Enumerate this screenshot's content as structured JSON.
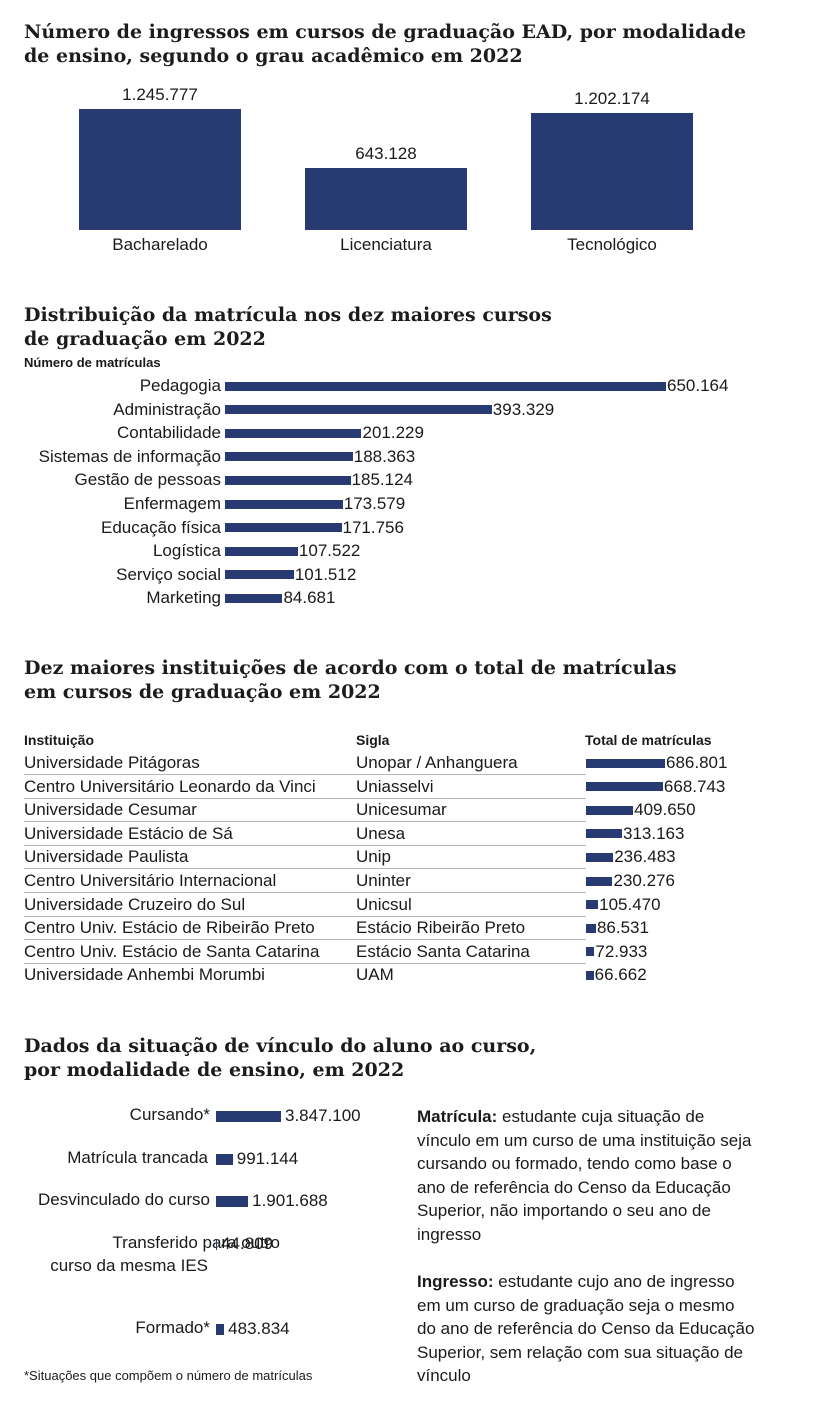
{
  "chart1": {
    "title_line1": "Número de ingressos em cursos de graduação EAD, por modalidade",
    "title_line2": "de ensino, segundo o grau acadêmico em 2022",
    "chart_data": {
      "type": "bar",
      "categories": [
        "Bacharelado",
        "Licenciatura",
        "Tecnológico"
      ],
      "values": [
        1245777,
        643128,
        1202174
      ],
      "value_labels": [
        "1.245.777",
        "643.128",
        "1.202.174"
      ]
    }
  },
  "chart2": {
    "title_line1": "Distribuição da matrícula nos dez maiores cursos",
    "title_line2": "de graduação em 2022",
    "axis_caption": "Número de matrículas",
    "chart_data": {
      "type": "bar",
      "orientation": "horizontal",
      "categories": [
        "Pedagogia",
        "Administração",
        "Contabilidade",
        "Sistemas de informação",
        "Gestão de pessoas",
        "Enfermagem",
        "Educação física",
        "Logística",
        "Serviço social",
        "Marketing"
      ],
      "values": [
        650164,
        393329,
        201229,
        188363,
        185124,
        173579,
        171756,
        107522,
        101512,
        84681
      ],
      "value_labels": [
        "650.164",
        "393.329",
        "201.229",
        "188.363",
        "185.124",
        "173.579",
        "171.756",
        "107.522",
        "101.512",
        "84.681"
      ]
    }
  },
  "table": {
    "title_line1": "Dez maiores instituições de acordo com o total de matrículas",
    "title_line2": "em cursos de graduação em 2022",
    "headers": {
      "institution": "Instituição",
      "acronym": "Sigla",
      "total": "Total de matrículas"
    },
    "rows": [
      {
        "institution": "Universidade Pitágoras",
        "acronym": "Unopar / Anhanguera",
        "total": 686801,
        "label": "686.801"
      },
      {
        "institution": "Centro Universitário Leonardo da Vinci",
        "acronym": "Uniasselvi",
        "total": 668743,
        "label": "668.743"
      },
      {
        "institution": "Universidade Cesumar",
        "acronym": "Unicesumar",
        "total": 409650,
        "label": "409.650"
      },
      {
        "institution": "Universidade Estácio de Sá",
        "acronym": "Unesa",
        "total": 313163,
        "label": "313.163"
      },
      {
        "institution": "Universidade Paulista",
        "acronym": "Unip",
        "total": 236483,
        "label": "236.483"
      },
      {
        "institution": "Centro Universitário Internacional",
        "acronym": "Uninter",
        "total": 230276,
        "label": "230.276"
      },
      {
        "institution": "Universidade Cruzeiro do Sul",
        "acronym": "Unicsul",
        "total": 105470,
        "label": "105.470"
      },
      {
        "institution": "Centro Univ. Estácio de Ribeirão Preto",
        "acronym": "Estácio Ribeirão Preto",
        "total": 86531,
        "label": "86.531"
      },
      {
        "institution": "Centro Univ. Estácio de Santa Catarina",
        "acronym": "Estácio Santa Catarina",
        "total": 72933,
        "label": "72.933"
      },
      {
        "institution": "Universidade Anhembi Morumbi",
        "acronym": "UAM",
        "total": 66662,
        "label": "66.662"
      }
    ]
  },
  "chart4": {
    "title_line1": "Dados da situação de vínculo do aluno ao curso,",
    "title_line2": "por modalidade de ensino, em 2022",
    "chart_data": {
      "type": "bar",
      "orientation": "horizontal",
      "categories": [
        "Cursando*",
        "Matrícula trancada",
        "Desvinculado do curso",
        "Transferido para outro curso da mesma IES",
        "Formado*"
      ],
      "values": [
        3847100,
        991144,
        1901688,
        44809,
        483834
      ],
      "value_labels": [
        "3.847.100",
        "991.144",
        "1.901.688",
        "44.809",
        "483.834"
      ]
    },
    "category_lines": {
      "cursando": "Cursando*",
      "trancada": "Matrícula trancada",
      "desvinculado": "Desvinculado do curso",
      "transferido_1": "Transferido para outro",
      "transferido_2": "curso da mesma IES",
      "formado": "Formado*"
    },
    "footnote": "*Situações que compõem o número de matrículas"
  },
  "definitions": [
    {
      "term": "Matrícula:",
      "text": " estudante cuja situação de vínculo em um curso de uma instituição seja cursando ou formado, tendo como base o ano de referência do Censo da Educação Superior, não importando o seu ano de ingresso"
    },
    {
      "term": "Ingresso:",
      "text": " estudante cujo ano de ingresso em um curso de graduação seja o mesmo do ano de referência do Censo da Educação Superior, sem relação com sua situação de vínculo"
    }
  ],
  "colors": {
    "bar": "#283a72",
    "text": "#1a1a1a",
    "rule": "#b5b5b5"
  }
}
